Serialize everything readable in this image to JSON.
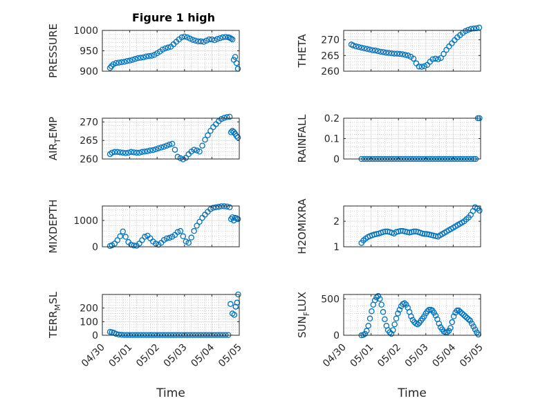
{
  "figure": {
    "title": "Figure 1 high"
  },
  "colors": {
    "marker": "#0072BD",
    "axis": "#262626",
    "grid": "#b0b0b0"
  },
  "chart_data": [
    {
      "type": "scatter",
      "id": "pressure",
      "ylabel": "PRESSURE",
      "ylabel_sub": null,
      "ylim": [
        900,
        1000
      ],
      "yticks": [
        900,
        950,
        1000
      ],
      "yticklabels": [
        "900",
        "950",
        "1000"
      ],
      "xlim": [
        0,
        5
      ],
      "xticks": [
        0,
        1,
        2,
        3,
        4,
        5
      ],
      "xticklabels": [
        "04/30",
        "05/01",
        "05/02",
        "05/03",
        "05/04",
        "05/05"
      ],
      "show_xticklabels": false,
      "xlabel": "",
      "x": [
        0.28,
        0.33,
        0.4,
        0.5,
        0.6,
        0.7,
        0.8,
        0.9,
        1.0,
        1.1,
        1.2,
        1.3,
        1.4,
        1.5,
        1.6,
        1.7,
        1.8,
        1.9,
        2.0,
        2.1,
        2.2,
        2.3,
        2.4,
        2.5,
        2.6,
        2.7,
        2.8,
        2.9,
        3.0,
        3.1,
        3.2,
        3.3,
        3.4,
        3.5,
        3.6,
        3.7,
        3.8,
        3.9,
        4.0,
        4.1,
        4.2,
        4.3,
        4.4,
        4.5,
        4.6,
        4.65,
        4.7,
        4.75,
        4.8,
        4.85,
        4.9,
        4.95
      ],
      "y": [
        908,
        912,
        917,
        920,
        921,
        922,
        923,
        925,
        926,
        928,
        930,
        932,
        933,
        934,
        936,
        937,
        938,
        940,
        944,
        948,
        953,
        956,
        958,
        960,
        966,
        972,
        978,
        983,
        985,
        983,
        980,
        977,
        975,
        973,
        973,
        972,
        975,
        978,
        978,
        976,
        979,
        981,
        983,
        984,
        983,
        982,
        980,
        978,
        928,
        935,
        920,
        906
      ]
    },
    {
      "type": "scatter",
      "id": "theta",
      "ylabel": "THETA",
      "ylabel_sub": null,
      "ylim": [
        260,
        273
      ],
      "yticks": [
        260,
        265,
        270
      ],
      "yticklabels": [
        "260",
        "265",
        "270"
      ],
      "xlim": [
        0,
        5
      ],
      "xticks": [
        0,
        1,
        2,
        3,
        4,
        5
      ],
      "xticklabels": [
        "04/30",
        "05/01",
        "05/02",
        "05/03",
        "05/04",
        "05/05"
      ],
      "show_xticklabels": false,
      "xlabel": "",
      "x": [
        0.28,
        0.35,
        0.45,
        0.55,
        0.65,
        0.75,
        0.85,
        0.95,
        1.05,
        1.15,
        1.25,
        1.35,
        1.45,
        1.55,
        1.65,
        1.75,
        1.85,
        1.95,
        2.05,
        2.15,
        2.25,
        2.35,
        2.45,
        2.55,
        2.65,
        2.75,
        2.85,
        2.95,
        3.05,
        3.15,
        3.25,
        3.35,
        3.45,
        3.55,
        3.65,
        3.75,
        3.85,
        3.95,
        4.05,
        4.15,
        4.25,
        4.35,
        4.45,
        4.55,
        4.65,
        4.75,
        4.85,
        4.95
      ],
      "y": [
        268.5,
        268.2,
        267.9,
        267.7,
        267.5,
        267.3,
        267.1,
        266.9,
        266.7,
        266.6,
        266.4,
        266.2,
        266.1,
        265.9,
        265.8,
        265.7,
        265.6,
        265.6,
        265.5,
        265.4,
        265.2,
        265.0,
        264.6,
        264.0,
        262.5,
        261.5,
        261.4,
        261.6,
        262.0,
        263.0,
        263.8,
        264.0,
        263.8,
        264.2,
        265.5,
        266.8,
        267.9,
        268.9,
        269.9,
        270.8,
        271.5,
        272.2,
        272.8,
        273.2,
        273.5,
        273.6,
        273.7,
        273.9
      ]
    },
    {
      "type": "scatter",
      "id": "air_temp",
      "ylabel": "AIR",
      "ylabel_sub": "T",
      "ylabel_tail": "EMP",
      "ylim": [
        260,
        271
      ],
      "yticks": [
        260,
        265,
        270
      ],
      "yticklabels": [
        "260",
        "265",
        "270"
      ],
      "xlim": [
        0,
        5
      ],
      "xticks": [
        0,
        1,
        2,
        3,
        4,
        5
      ],
      "xticklabels": [
        "04/30",
        "05/01",
        "05/02",
        "05/03",
        "05/04",
        "05/05"
      ],
      "show_xticklabels": false,
      "xlabel": "",
      "x": [
        0.28,
        0.35,
        0.45,
        0.55,
        0.65,
        0.75,
        0.85,
        0.95,
        1.05,
        1.15,
        1.25,
        1.35,
        1.45,
        1.55,
        1.65,
        1.75,
        1.85,
        1.95,
        2.05,
        2.15,
        2.25,
        2.35,
        2.45,
        2.55,
        2.65,
        2.75,
        2.85,
        2.95,
        3.05,
        3.15,
        3.25,
        3.35,
        3.45,
        3.55,
        3.65,
        3.75,
        3.85,
        3.95,
        4.05,
        4.15,
        4.25,
        4.35,
        4.45,
        4.55,
        4.65,
        4.7,
        4.75,
        4.8,
        4.85,
        4.9,
        4.95
      ],
      "y": [
        261.3,
        261.7,
        261.9,
        261.9,
        261.8,
        261.7,
        261.6,
        261.7,
        261.9,
        261.8,
        261.7,
        261.7,
        261.9,
        262.0,
        262.1,
        262.3,
        262.4,
        262.6,
        262.9,
        263.1,
        263.3,
        263.6,
        263.9,
        264.1,
        262.5,
        260.6,
        260.2,
        259.9,
        260.3,
        261.3,
        262.0,
        262.5,
        262.3,
        262.0,
        263.6,
        265.2,
        266.4,
        267.6,
        268.6,
        269.4,
        270.2,
        270.8,
        271.1,
        271.3,
        271.4,
        267.2,
        267.6,
        267.3,
        266.8,
        266.2,
        265.8
      ]
    },
    {
      "type": "scatter",
      "id": "rainfall",
      "ylabel": "RAINFALL",
      "ylabel_sub": null,
      "ylim": [
        0,
        0.2
      ],
      "yticks": [
        0,
        0.1,
        0.2
      ],
      "yticklabels": [
        "0",
        "0.1",
        "0.2"
      ],
      "xlim": [
        0,
        5
      ],
      "xticks": [
        0,
        1,
        2,
        3,
        4,
        5
      ],
      "xticklabels": [
        "04/30",
        "05/01",
        "05/02",
        "05/03",
        "05/04",
        "05/05"
      ],
      "show_xticklabels": false,
      "xlabel": "",
      "x": [
        0.65,
        0.75,
        0.85,
        0.95,
        1.05,
        1.15,
        1.25,
        1.35,
        1.45,
        1.55,
        1.65,
        1.75,
        1.85,
        1.95,
        2.05,
        2.15,
        2.25,
        2.35,
        2.45,
        2.55,
        2.65,
        2.75,
        2.85,
        2.95,
        3.05,
        3.15,
        3.25,
        3.35,
        3.45,
        3.55,
        3.65,
        3.75,
        3.85,
        3.95,
        4.05,
        4.15,
        4.25,
        4.35,
        4.45,
        4.55,
        4.65,
        4.75,
        4.82,
        4.9,
        4.96
      ],
      "y": [
        0,
        0,
        0,
        0,
        0,
        0,
        0,
        0,
        0,
        0,
        0,
        0,
        0,
        0,
        0,
        0,
        0,
        0,
        0,
        0,
        0,
        0,
        0,
        0,
        0,
        0,
        0,
        0,
        0,
        0,
        0,
        0,
        0,
        0,
        0,
        0,
        0,
        0,
        0,
        0,
        0,
        0,
        0,
        0.2,
        0.2
      ]
    },
    {
      "type": "scatter",
      "id": "mixdepth",
      "ylabel": "MIXDEPTH",
      "ylabel_sub": null,
      "ylim": [
        0,
        1550
      ],
      "yticks": [
        0,
        1000
      ],
      "yticklabels": [
        "0",
        "1000"
      ],
      "xlim": [
        0,
        5
      ],
      "xticks": [
        0,
        1,
        2,
        3,
        4,
        5
      ],
      "xticklabels": [
        "04/30",
        "05/01",
        "05/02",
        "05/03",
        "05/04",
        "05/05"
      ],
      "show_xticklabels": false,
      "xlabel": "",
      "x": [
        0.28,
        0.35,
        0.45,
        0.55,
        0.65,
        0.75,
        0.85,
        0.95,
        1.05,
        1.15,
        1.25,
        1.35,
        1.45,
        1.55,
        1.65,
        1.75,
        1.85,
        1.95,
        2.05,
        2.15,
        2.25,
        2.35,
        2.45,
        2.55,
        2.65,
        2.75,
        2.85,
        2.95,
        3.05,
        3.15,
        3.25,
        3.35,
        3.45,
        3.55,
        3.65,
        3.75,
        3.85,
        3.95,
        4.05,
        4.15,
        4.25,
        4.35,
        4.45,
        4.55,
        4.65,
        4.7,
        4.75,
        4.8,
        4.85,
        4.9,
        4.95
      ],
      "y": [
        30,
        60,
        120,
        250,
        400,
        580,
        380,
        180,
        80,
        50,
        40,
        120,
        250,
        380,
        420,
        320,
        200,
        120,
        80,
        150,
        260,
        320,
        340,
        380,
        450,
        560,
        600,
        400,
        200,
        150,
        350,
        600,
        800,
        950,
        1100,
        1220,
        1330,
        1430,
        1480,
        1500,
        1520,
        1540,
        1540,
        1530,
        1500,
        1050,
        1120,
        1000,
        1100,
        1080,
        1050
      ]
    },
    {
      "type": "scatter",
      "id": "h2omixra",
      "ylabel": "H2OMIXRA",
      "ylabel_sub": null,
      "ylim": [
        1,
        2.6
      ],
      "yticks": [
        1,
        2
      ],
      "yticklabels": [
        "1",
        "2"
      ],
      "xlim": [
        0,
        5
      ],
      "xticks": [
        0,
        1,
        2,
        3,
        4,
        5
      ],
      "xticklabels": [
        "04/30",
        "05/01",
        "05/02",
        "05/03",
        "05/04",
        "05/05"
      ],
      "show_xticklabels": false,
      "xlabel": "",
      "x": [
        0.65,
        0.72,
        0.8,
        0.88,
        0.96,
        1.04,
        1.12,
        1.2,
        1.28,
        1.36,
        1.44,
        1.52,
        1.6,
        1.68,
        1.76,
        1.84,
        1.92,
        2.0,
        2.08,
        2.16,
        2.24,
        2.32,
        2.4,
        2.48,
        2.56,
        2.64,
        2.72,
        2.8,
        2.88,
        2.96,
        3.04,
        3.12,
        3.2,
        3.28,
        3.36,
        3.44,
        3.52,
        3.6,
        3.68,
        3.76,
        3.84,
        3.92,
        4.0,
        4.08,
        4.16,
        4.24,
        4.32,
        4.4,
        4.48,
        4.56,
        4.64,
        4.72,
        4.8,
        4.88,
        4.96
      ],
      "y": [
        1.15,
        1.25,
        1.32,
        1.38,
        1.42,
        1.45,
        1.48,
        1.5,
        1.52,
        1.55,
        1.58,
        1.6,
        1.6,
        1.58,
        1.55,
        1.52,
        1.58,
        1.6,
        1.62,
        1.62,
        1.6,
        1.58,
        1.56,
        1.58,
        1.6,
        1.6,
        1.58,
        1.55,
        1.52,
        1.5,
        1.5,
        1.48,
        1.46,
        1.44,
        1.42,
        1.4,
        1.45,
        1.5,
        1.55,
        1.6,
        1.65,
        1.7,
        1.75,
        1.8,
        1.85,
        1.9,
        1.95,
        2.0,
        2.08,
        2.15,
        2.25,
        2.4,
        2.55,
        2.5,
        2.42
      ]
    },
    {
      "type": "scatter",
      "id": "terr_msl",
      "ylabel": "TERR",
      "ylabel_sub": "M",
      "ylabel_tail": "SL",
      "ylim": [
        0,
        300
      ],
      "yticks": [
        0,
        100,
        200
      ],
      "yticklabels": [
        "0",
        "100",
        "200"
      ],
      "xlim": [
        0,
        5
      ],
      "xticks": [
        0,
        1,
        2,
        3,
        4,
        5
      ],
      "xticklabels": [
        "04/30",
        "05/01",
        "05/02",
        "05/03",
        "05/04",
        "05/05"
      ],
      "show_xticklabels": true,
      "xlabel": "Time",
      "x": [
        0.28,
        0.35,
        0.42,
        0.5,
        0.6,
        0.7,
        0.8,
        0.9,
        1.0,
        1.1,
        1.2,
        1.3,
        1.4,
        1.5,
        1.6,
        1.7,
        1.8,
        1.9,
        2.0,
        2.1,
        2.2,
        2.3,
        2.4,
        2.5,
        2.6,
        2.7,
        2.8,
        2.9,
        3.0,
        3.1,
        3.2,
        3.3,
        3.4,
        3.5,
        3.6,
        3.7,
        3.8,
        3.9,
        4.0,
        4.1,
        4.2,
        4.3,
        4.4,
        4.5,
        4.6,
        4.68,
        4.75,
        4.82,
        4.87,
        4.92,
        4.96
      ],
      "y": [
        25,
        22,
        18,
        10,
        5,
        3,
        2,
        2,
        2,
        2,
        2,
        2,
        2,
        2,
        2,
        2,
        2,
        2,
        2,
        2,
        2,
        2,
        2,
        2,
        2,
        2,
        2,
        2,
        2,
        2,
        2,
        2,
        2,
        2,
        2,
        2,
        2,
        2,
        2,
        2,
        2,
        2,
        2,
        2,
        2,
        230,
        160,
        150,
        210,
        240,
        300
      ]
    },
    {
      "type": "scatter",
      "id": "sun_flux",
      "ylabel": "SUN",
      "ylabel_sub": "F",
      "ylabel_tail": "LUX",
      "ylim": [
        0,
        560
      ],
      "yticks": [
        0,
        500
      ],
      "yticklabels": [
        "0",
        "500"
      ],
      "xlim": [
        0,
        5
      ],
      "xticks": [
        0,
        1,
        2,
        3,
        4,
        5
      ],
      "xticklabels": [
        "04/30",
        "05/01",
        "05/02",
        "05/03",
        "05/04",
        "05/05"
      ],
      "show_xticklabels": true,
      "xlabel": "Time",
      "x": [
        0.65,
        0.72,
        0.78,
        0.84,
        0.9,
        0.96,
        1.02,
        1.08,
        1.14,
        1.2,
        1.26,
        1.32,
        1.38,
        1.44,
        1.5,
        1.56,
        1.62,
        1.68,
        1.74,
        1.8,
        1.86,
        1.92,
        1.98,
        2.04,
        2.1,
        2.16,
        2.22,
        2.28,
        2.34,
        2.4,
        2.46,
        2.52,
        2.58,
        2.64,
        2.7,
        2.76,
        2.82,
        2.88,
        2.94,
        3.0,
        3.06,
        3.12,
        3.18,
        3.24,
        3.3,
        3.36,
        3.42,
        3.48,
        3.54,
        3.6,
        3.66,
        3.72,
        3.78,
        3.84,
        3.9,
        3.96,
        4.02,
        4.08,
        4.14,
        4.2,
        4.26,
        4.32,
        4.38,
        4.44,
        4.5,
        4.56,
        4.62,
        4.68,
        4.74,
        4.8,
        4.86,
        4.92
      ],
      "y": [
        0,
        5,
        20,
        60,
        130,
        230,
        330,
        420,
        480,
        520,
        540,
        500,
        420,
        320,
        220,
        130,
        70,
        40,
        20,
        70,
        150,
        230,
        300,
        350,
        400,
        430,
        440,
        420,
        380,
        320,
        260,
        210,
        180,
        160,
        150,
        170,
        200,
        230,
        260,
        300,
        330,
        350,
        350,
        340,
        310,
        270,
        220,
        160,
        110,
        80,
        50,
        40,
        40,
        60,
        100,
        180,
        260,
        310,
        340,
        340,
        320,
        300,
        280,
        260,
        240,
        220,
        200,
        160,
        120,
        80,
        40,
        10
      ]
    }
  ]
}
